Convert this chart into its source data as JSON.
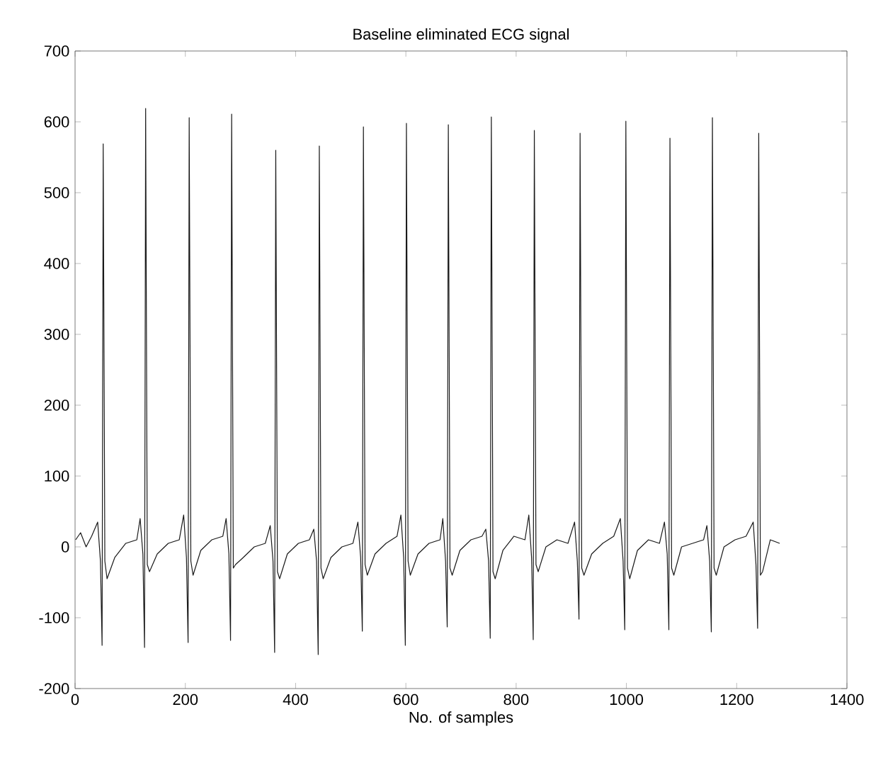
{
  "chart_data": {
    "type": "line",
    "title": "Baseline eliminated ECG signal",
    "xlabel": "No. of samples",
    "xlim": [
      0,
      1400
    ],
    "xticks": [
      0,
      200,
      400,
      600,
      800,
      1000,
      1200,
      1400
    ],
    "ylim": [
      -200,
      700
    ],
    "yticks": [
      -200,
      -100,
      0,
      100,
      200,
      300,
      400,
      500,
      600,
      700
    ],
    "series": [
      {
        "color": "#1a1a1a",
        "x": [
          1,
          10,
          20,
          30,
          41,
          46,
          49,
          51,
          54,
          58,
          72,
          92,
          112,
          118,
          123,
          126,
          128,
          131,
          135,
          149,
          169,
          189,
          197,
          202,
          205,
          207,
          210,
          214,
          228,
          248,
          268,
          274,
          279,
          282,
          284,
          287,
          291,
          305,
          325,
          345,
          354,
          359,
          362,
          364,
          367,
          371,
          385,
          405,
          425,
          433,
          438,
          441,
          443,
          446,
          450,
          464,
          484,
          504,
          513,
          518,
          521,
          523,
          526,
          530,
          544,
          564,
          584,
          591,
          596,
          599,
          601,
          604,
          608,
          622,
          642,
          662,
          667,
          672,
          675,
          677,
          680,
          684,
          698,
          718,
          738,
          745,
          750,
          753,
          755,
          758,
          762,
          776,
          796,
          816,
          823,
          828,
          831,
          833,
          836,
          840,
          854,
          874,
          894,
          906,
          911,
          914,
          916,
          919,
          923,
          937,
          957,
          977,
          989,
          994,
          997,
          999,
          1002,
          1006,
          1020,
          1040,
          1060,
          1069,
          1074,
          1077,
          1079,
          1082,
          1086,
          1100,
          1120,
          1140,
          1146,
          1151,
          1154,
          1156,
          1159,
          1163,
          1177,
          1197,
          1217,
          1230,
          1235,
          1238,
          1240,
          1243,
          1247,
          1261,
          1278
        ],
        "values": [
          10,
          20,
          0,
          15,
          35,
          -20,
          -139,
          569,
          -20,
          -45,
          -15,
          5,
          10,
          40,
          -10,
          -142,
          619,
          -25,
          -35,
          -10,
          5,
          10,
          45,
          -15,
          -135,
          606,
          -20,
          -40,
          -5,
          10,
          15,
          40,
          -10,
          -132,
          611,
          -30,
          -25,
          -15,
          0,
          5,
          30,
          -20,
          -149,
          560,
          -35,
          -45,
          -10,
          5,
          10,
          25,
          -20,
          -152,
          566,
          -30,
          -45,
          -15,
          0,
          5,
          35,
          -15,
          -119,
          593,
          -25,
          -40,
          -10,
          5,
          15,
          45,
          -15,
          -139,
          598,
          -20,
          -40,
          -10,
          5,
          10,
          40,
          -20,
          -113,
          596,
          -30,
          -40,
          -5,
          10,
          15,
          25,
          -20,
          -129,
          607,
          -35,
          -45,
          -5,
          15,
          10,
          45,
          -15,
          -131,
          588,
          -25,
          -35,
          0,
          10,
          5,
          35,
          -20,
          -102,
          584,
          -30,
          -40,
          -10,
          5,
          15,
          40,
          -20,
          -117,
          601,
          -30,
          -45,
          -5,
          10,
          5,
          35,
          -10,
          -117,
          577,
          -30,
          -40,
          0,
          5,
          10,
          30,
          -20,
          -120,
          606,
          -30,
          -40,
          0,
          10,
          15,
          35,
          -25,
          -115,
          584,
          -40,
          -35,
          10,
          5
        ]
      }
    ]
  }
}
